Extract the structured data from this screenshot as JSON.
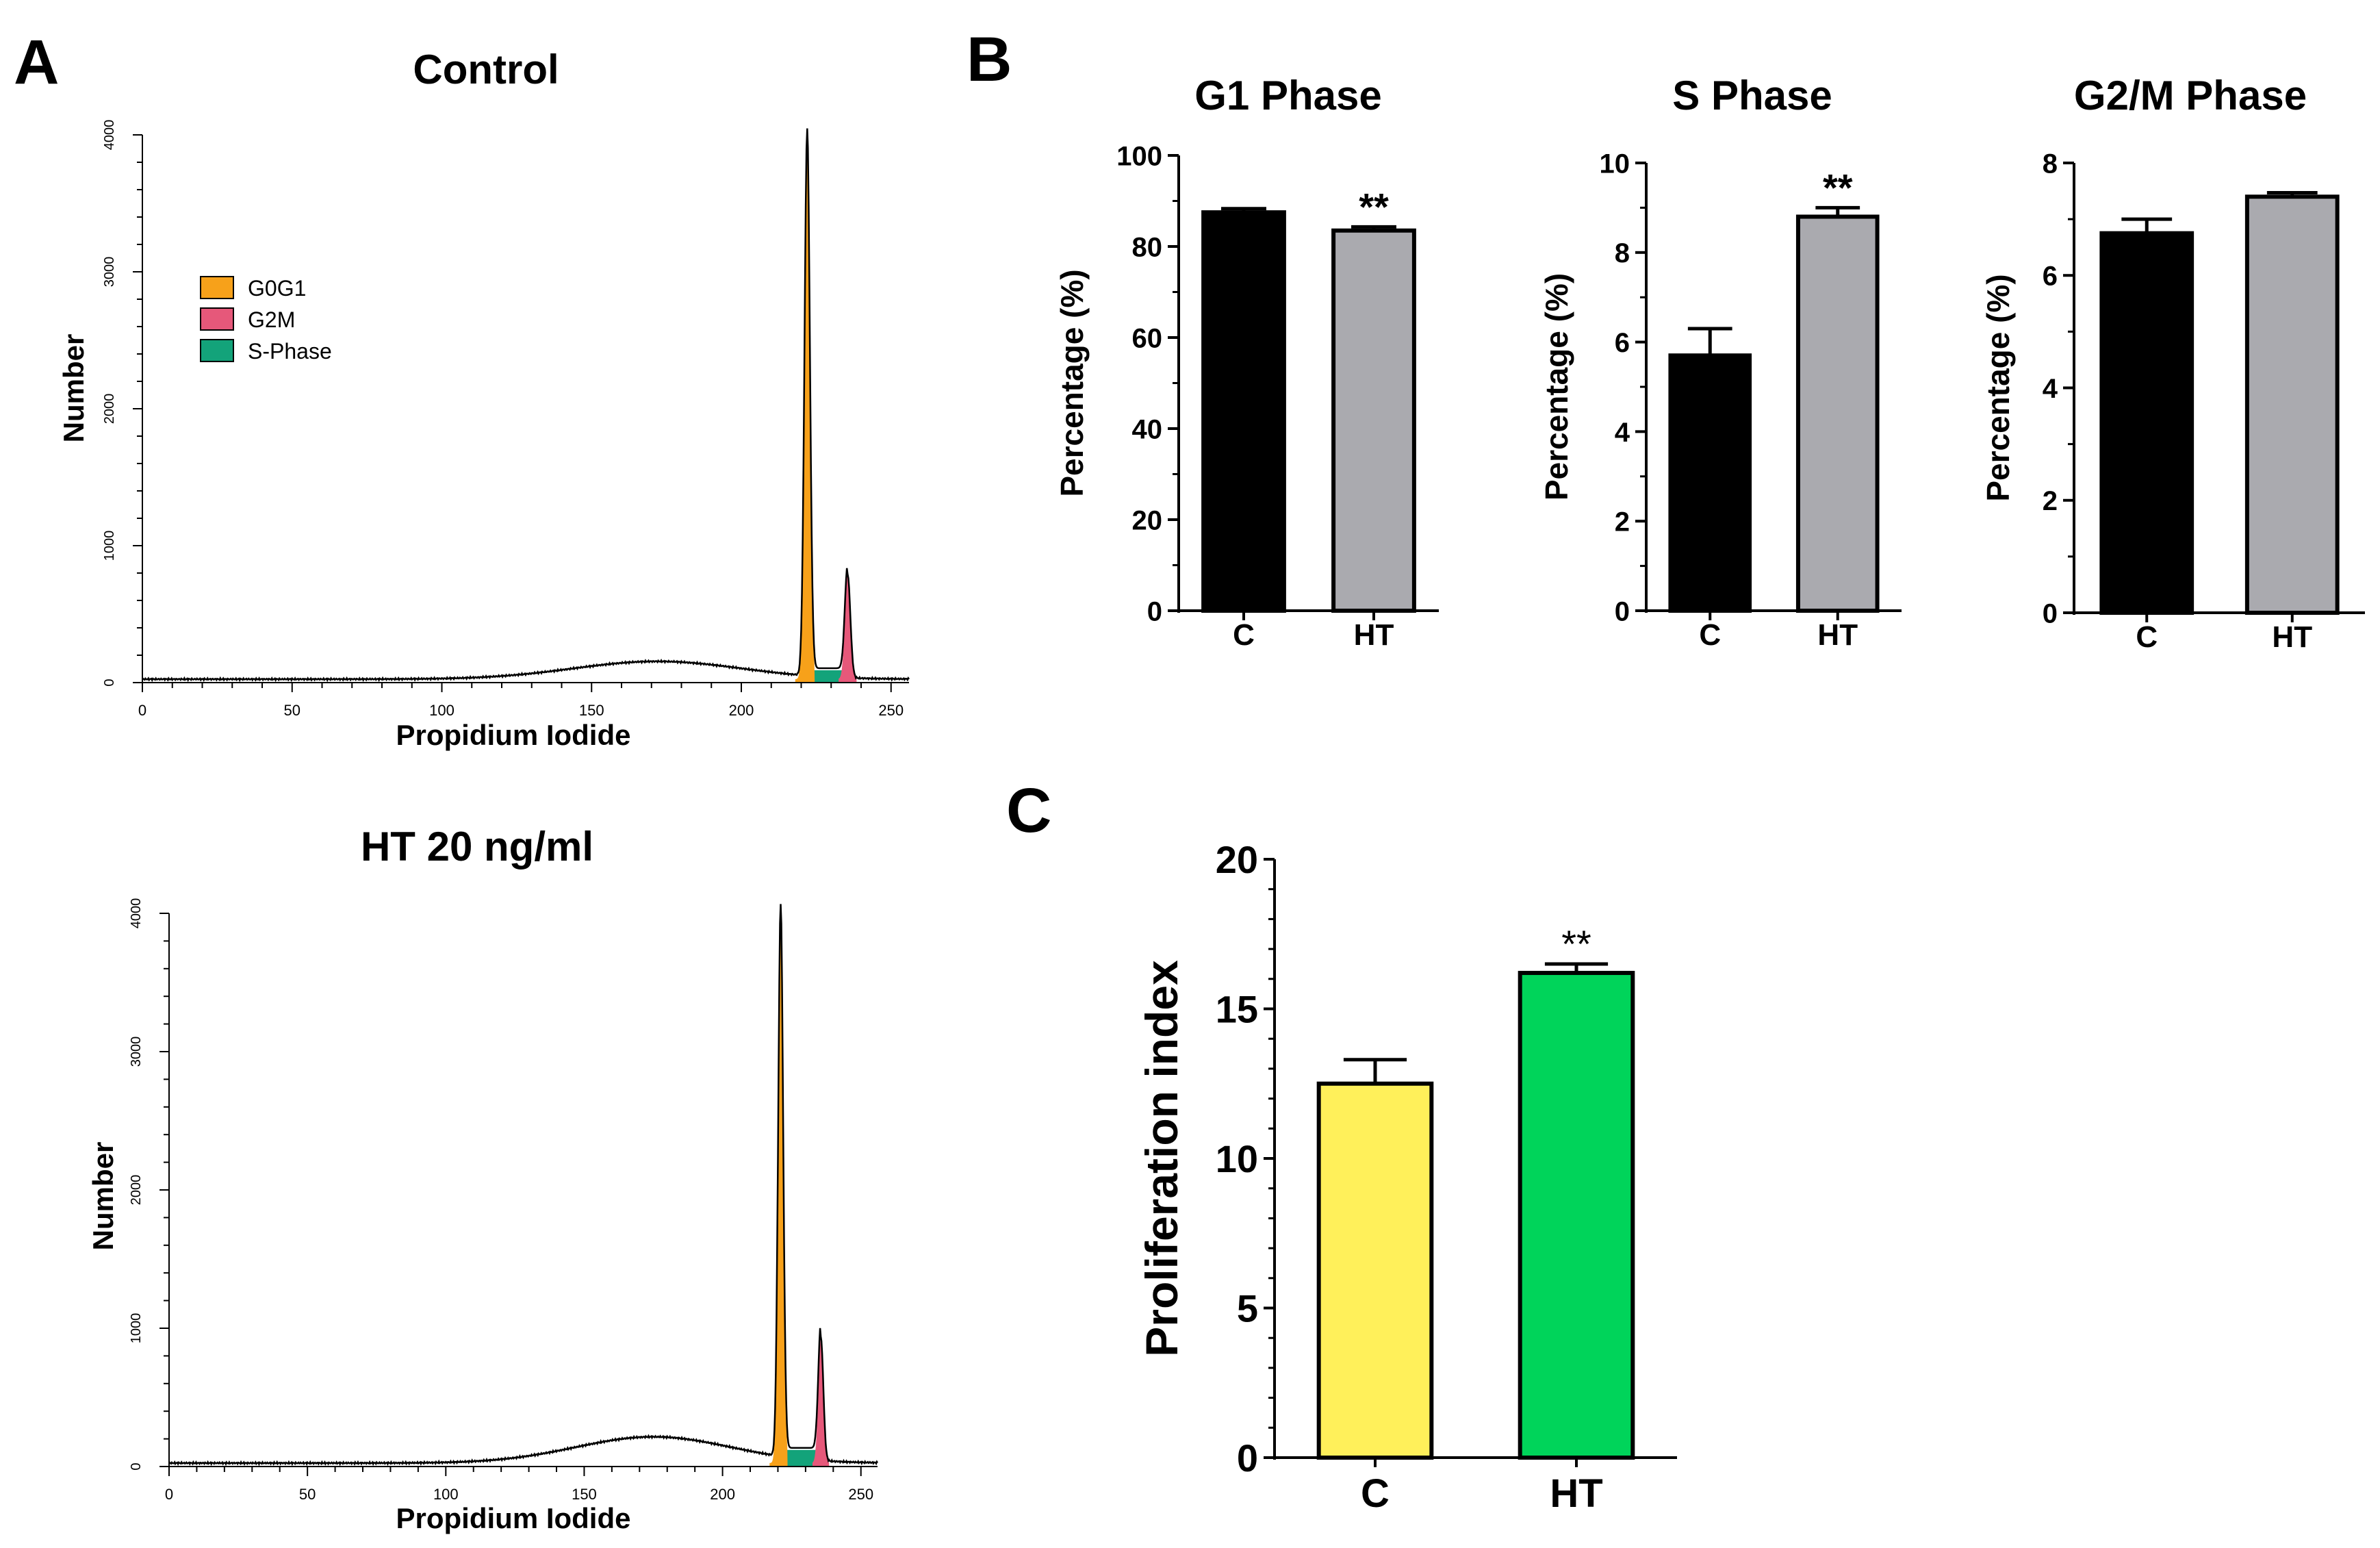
{
  "panel_labels": {
    "a": "A",
    "b": "B",
    "c": "C"
  },
  "colors": {
    "g0g1": "#f7a11a",
    "g2m": "#e6587a",
    "sphase": "#13a37a",
    "black_bar": "#000000",
    "gray_bar": "#aaaaaf",
    "yellow_bar": "#fff05a",
    "green_bar": "#00d45a"
  },
  "chart_data": [
    {
      "id": "hist_control",
      "type": "area",
      "title": "Control",
      "xlabel": "Propidium Iodide",
      "ylabel": "Number",
      "xlim": [
        0,
        256
      ],
      "ylim": [
        0,
        4000
      ],
      "xticks": [
        "0",
        "50",
        "100",
        "150",
        "200",
        "250"
      ],
      "yticks": [
        "0",
        "1000",
        "2000",
        "3000",
        "4000"
      ],
      "legend": [
        "G0G1",
        "G2M",
        "S-Phase"
      ],
      "legend_position": "top-left",
      "peaks": {
        "g0g1_channel": 222,
        "g0g1_height": 4000,
        "g2m_channel": 235.5,
        "g2m_height": 760,
        "baseline": 25,
        "sphase_level": 80,
        "debris_hump_center": 172,
        "debris_hump_height": 130
      }
    },
    {
      "id": "hist_ht",
      "type": "area",
      "title": "HT 20 ng/ml",
      "xlabel": "Propidium Iodide",
      "ylabel": "Number",
      "xlim": [
        0,
        256
      ],
      "ylim": [
        0,
        4000
      ],
      "xticks": [
        "0",
        "50",
        "100",
        "150",
        "200",
        "250"
      ],
      "yticks": [
        "0",
        "1000",
        "2000",
        "3000",
        "4000"
      ],
      "peaks": {
        "g0g1_channel": 221,
        "g0g1_height": 4000,
        "g2m_channel": 235.5,
        "g2m_height": 900,
        "baseline": 25,
        "sphase_level": 110,
        "debris_hump_center": 175,
        "debris_hump_height": 190
      }
    },
    {
      "id": "g1_phase",
      "type": "bar",
      "title": "G1 Phase",
      "ylabel": "Percentage (%)",
      "categories": [
        "C",
        "HT"
      ],
      "values": [
        87.5,
        83.5
      ],
      "errors": [
        0.8,
        0.8
      ],
      "ylim": [
        0,
        100
      ],
      "yticks": [
        "0",
        "20",
        "40",
        "60",
        "80",
        "100"
      ],
      "significance": [
        "",
        "**"
      ]
    },
    {
      "id": "s_phase",
      "type": "bar",
      "title": "S Phase",
      "ylabel": "Percentage (%)",
      "categories": [
        "C",
        "HT"
      ],
      "values": [
        5.7,
        8.8
      ],
      "errors": [
        0.6,
        0.2
      ],
      "ylim": [
        0,
        10
      ],
      "yticks": [
        "0",
        "2",
        "4",
        "6",
        "8",
        "10"
      ],
      "significance": [
        "",
        "**"
      ]
    },
    {
      "id": "g2m_phase",
      "type": "bar",
      "title": "G2/M Phase",
      "ylabel": "Percentage (%)",
      "categories": [
        "C",
        "HT"
      ],
      "values": [
        6.75,
        7.4
      ],
      "errors": [
        0.25,
        0.07
      ],
      "ylim": [
        0,
        8
      ],
      "yticks": [
        "0",
        "2",
        "4",
        "6",
        "8"
      ],
      "significance": [
        "",
        ""
      ]
    },
    {
      "id": "proliferation",
      "type": "bar",
      "title": "",
      "ylabel": "Proliferation index",
      "categories": [
        "C",
        "HT"
      ],
      "values": [
        12.5,
        16.2
      ],
      "errors": [
        0.8,
        0.3
      ],
      "ylim": [
        0,
        20
      ],
      "yticks": [
        "0",
        "5",
        "10",
        "15",
        "20"
      ],
      "significance": [
        "",
        "**"
      ]
    }
  ]
}
